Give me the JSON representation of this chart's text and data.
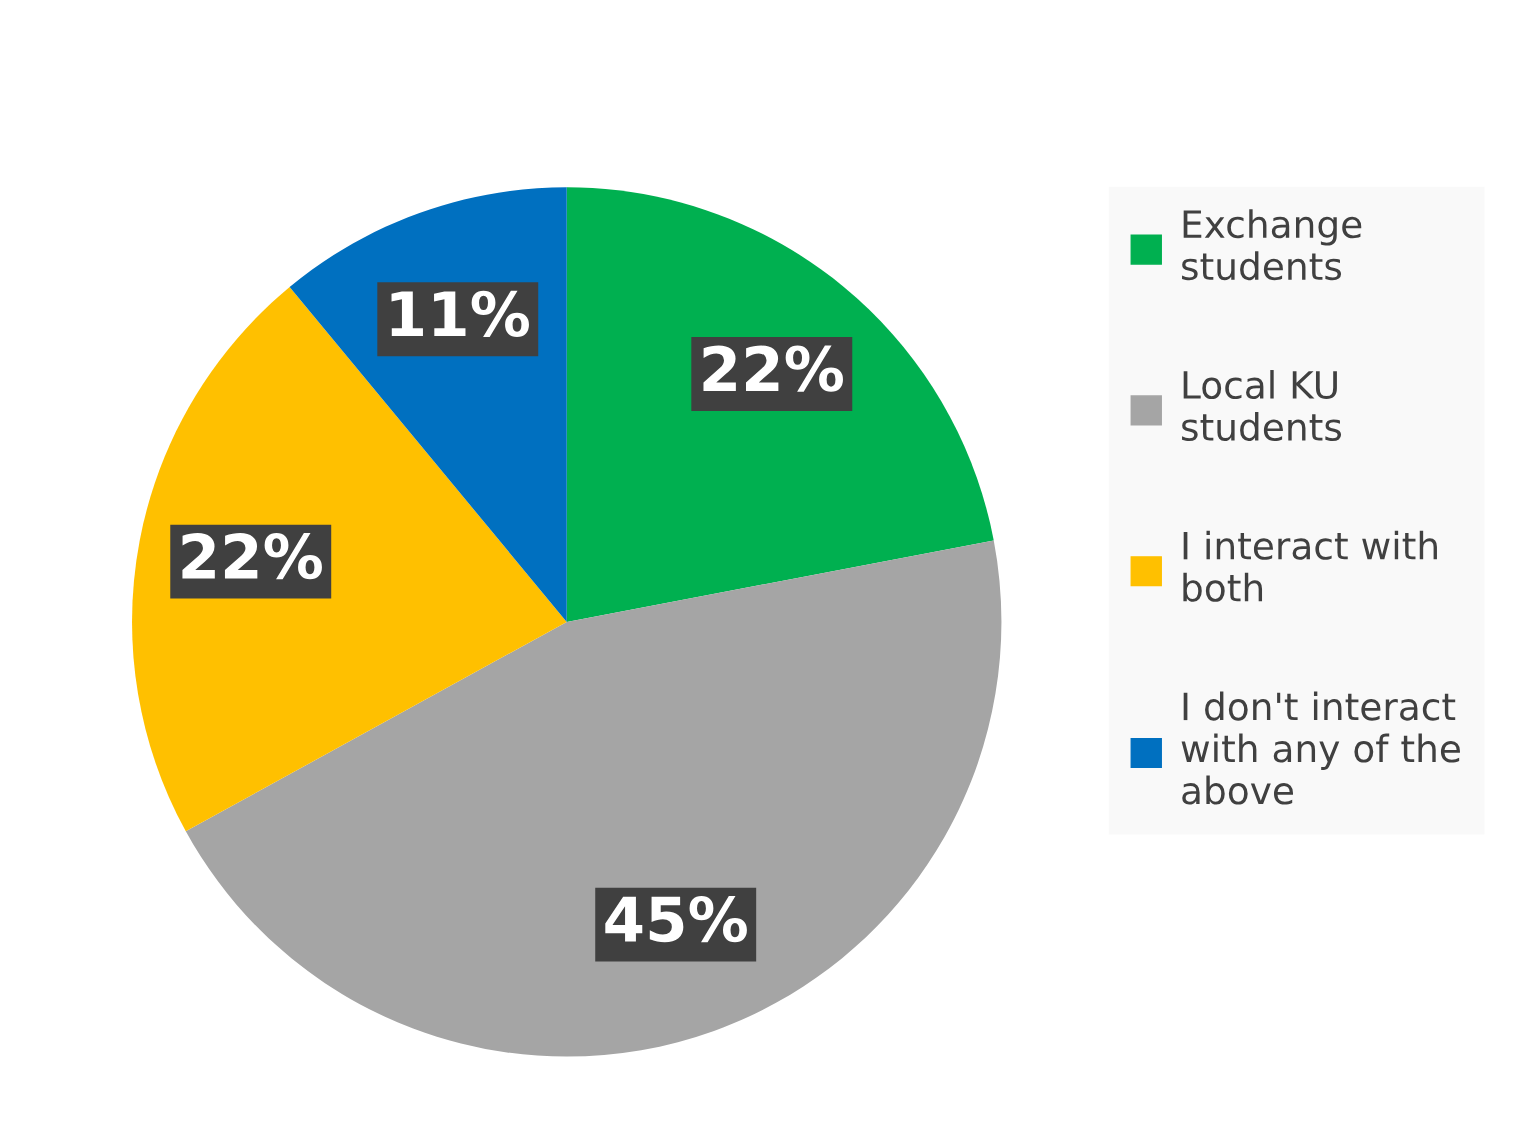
{
  "chart_data": {
    "type": "pie",
    "categories": [
      "Exchange students",
      "Local KU students",
      "I interact with both",
      "I don't interact with any of the above"
    ],
    "values": [
      22,
      45,
      22,
      11
    ],
    "colors": [
      "#00b050",
      "#a5a5a5",
      "#ffc000",
      "#0070c0"
    ],
    "value_labels": [
      "22%",
      "45%",
      "22%",
      "11%"
    ],
    "legend": "right"
  }
}
